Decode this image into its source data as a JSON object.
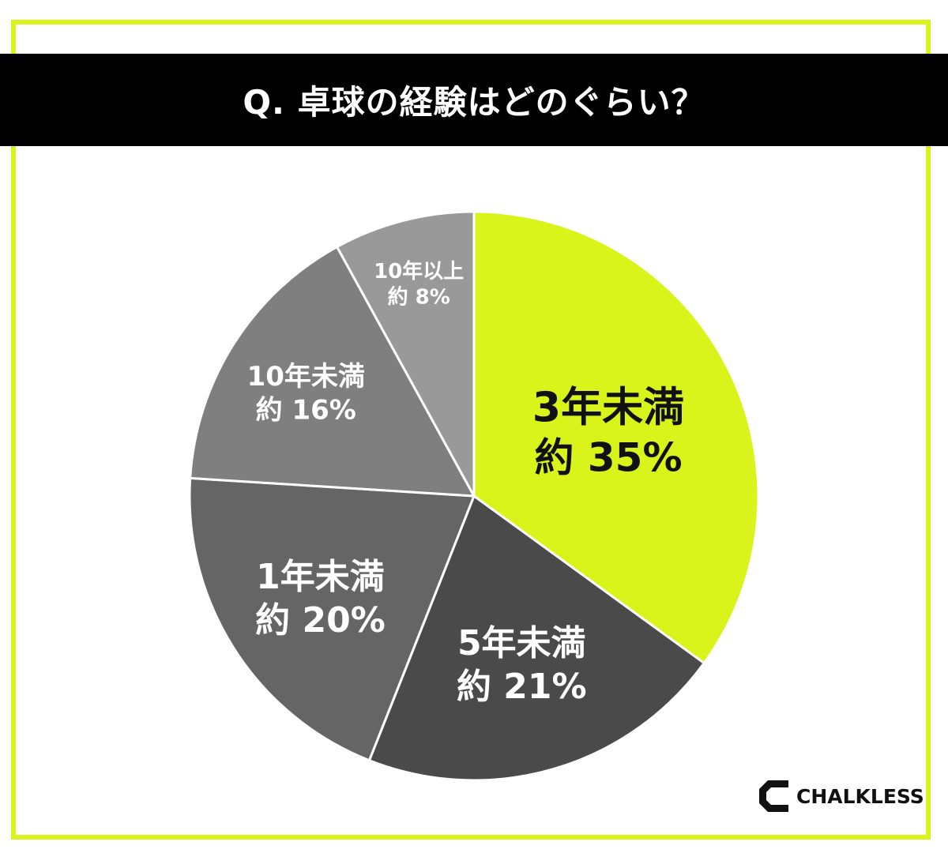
{
  "title": "Q. 卓球の経験はどのぐらい？",
  "brand": {
    "name": "CHALKLESS",
    "icon": "chalkless-logo-icon"
  },
  "colors": {
    "accent": "#d8f41a",
    "title_bg": "#000000"
  },
  "chart_data": {
    "type": "pie",
    "title": "Q. 卓球の経験はどのぐらい？",
    "start": "12 o'clock, clockwise",
    "slices": [
      {
        "label": "3年未満",
        "value_label": "約 35%",
        "prefix": "約",
        "value": 35,
        "color": "#d8f41a",
        "text_color": "#111111"
      },
      {
        "label": "5年未満",
        "value_label": "約 21%",
        "prefix": "約",
        "value": 21,
        "color": "#4a4a4a",
        "text_color": "#ffffff"
      },
      {
        "label": "1年未満",
        "value_label": "約 20%",
        "prefix": "約",
        "value": 20,
        "color": "#656565",
        "text_color": "#ffffff"
      },
      {
        "label": "10年未満",
        "value_label": "約 16%",
        "prefix": "約",
        "value": 16,
        "color": "#7f7f7f",
        "text_color": "#ffffff"
      },
      {
        "label": "10年以上",
        "value_label": "約 8%",
        "prefix": "約",
        "value": 8,
        "color": "#999999",
        "text_color": "#ffffff"
      }
    ]
  }
}
